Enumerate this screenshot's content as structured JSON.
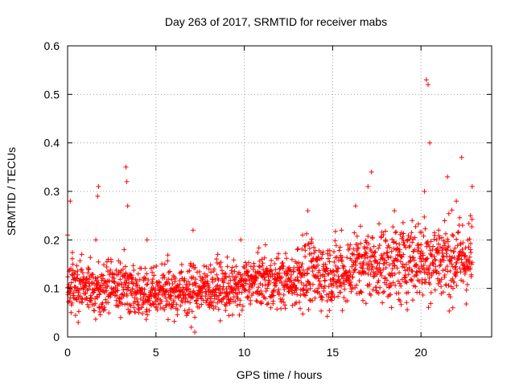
{
  "chart_data": {
    "type": "scatter",
    "title": "Day 263 of 2017, SRMTID for receiver mabs",
    "xlabel": "GPS time / hours",
    "ylabel": "SRMTID / TECUs",
    "xlim": [
      0,
      24
    ],
    "ylim": [
      0,
      0.6
    ],
    "xticks": [
      0,
      5,
      10,
      15,
      20
    ],
    "yticks": [
      0,
      0.1,
      0.2,
      0.3,
      0.4,
      0.5,
      0.6
    ],
    "xtick_labels": [
      "0",
      "5",
      "10",
      "15",
      "20"
    ],
    "ytick_labels": [
      "0",
      "0.1",
      "0.2",
      "0.3",
      "0.4",
      "0.5",
      "0.6"
    ],
    "grid": true,
    "marker": "+",
    "series": [
      {
        "name": "SRMTID",
        "color": "#ff0000",
        "x": [
          0.0,
          0.1,
          0.15,
          0.2,
          0.3,
          0.4,
          0.5,
          0.6,
          0.8,
          1.0,
          1.2,
          1.5,
          1.6,
          1.7,
          1.75,
          1.8,
          2.0,
          2.3,
          2.6,
          3.0,
          3.2,
          3.3,
          3.35,
          3.4,
          3.6,
          4.0,
          4.3,
          4.5,
          4.8,
          5.0,
          5.5,
          6.0,
          6.5,
          6.8,
          7.0,
          7.1,
          7.2,
          7.5,
          8.0,
          8.5,
          9.0,
          9.5,
          9.8,
          10.0,
          10.5,
          11.0,
          11.2,
          11.5,
          12.0,
          12.5,
          13.0,
          13.3,
          13.6,
          14.0,
          14.5,
          15.0,
          15.5,
          16.0,
          16.3,
          16.5,
          17.0,
          17.2,
          17.5,
          18.0,
          18.5,
          18.8,
          19.0,
          19.5,
          20.0,
          20.2,
          20.3,
          20.4,
          20.5,
          21.0,
          21.5,
          21.8,
          22.0,
          22.3,
          22.5,
          22.8,
          22.9
        ],
        "y": [
          0.21,
          0.1,
          0.28,
          0.05,
          0.15,
          0.08,
          0.12,
          0.03,
          0.17,
          0.09,
          0.14,
          0.11,
          0.2,
          0.29,
          0.31,
          0.06,
          0.12,
          0.16,
          0.1,
          0.04,
          0.18,
          0.35,
          0.32,
          0.27,
          0.09,
          0.13,
          0.07,
          0.2,
          0.11,
          0.08,
          0.15,
          0.1,
          0.12,
          0.05,
          0.02,
          0.22,
          0.01,
          0.09,
          0.14,
          0.17,
          0.07,
          0.11,
          0.2,
          0.13,
          0.09,
          0.16,
          0.19,
          0.06,
          0.14,
          0.1,
          0.18,
          0.21,
          0.26,
          0.08,
          0.15,
          0.12,
          0.22,
          0.19,
          0.27,
          0.09,
          0.31,
          0.34,
          0.14,
          0.2,
          0.26,
          0.11,
          0.17,
          0.24,
          0.19,
          0.3,
          0.53,
          0.52,
          0.4,
          0.22,
          0.33,
          0.06,
          0.28,
          0.37,
          0.14,
          0.25,
          0.31
        ]
      }
    ]
  }
}
